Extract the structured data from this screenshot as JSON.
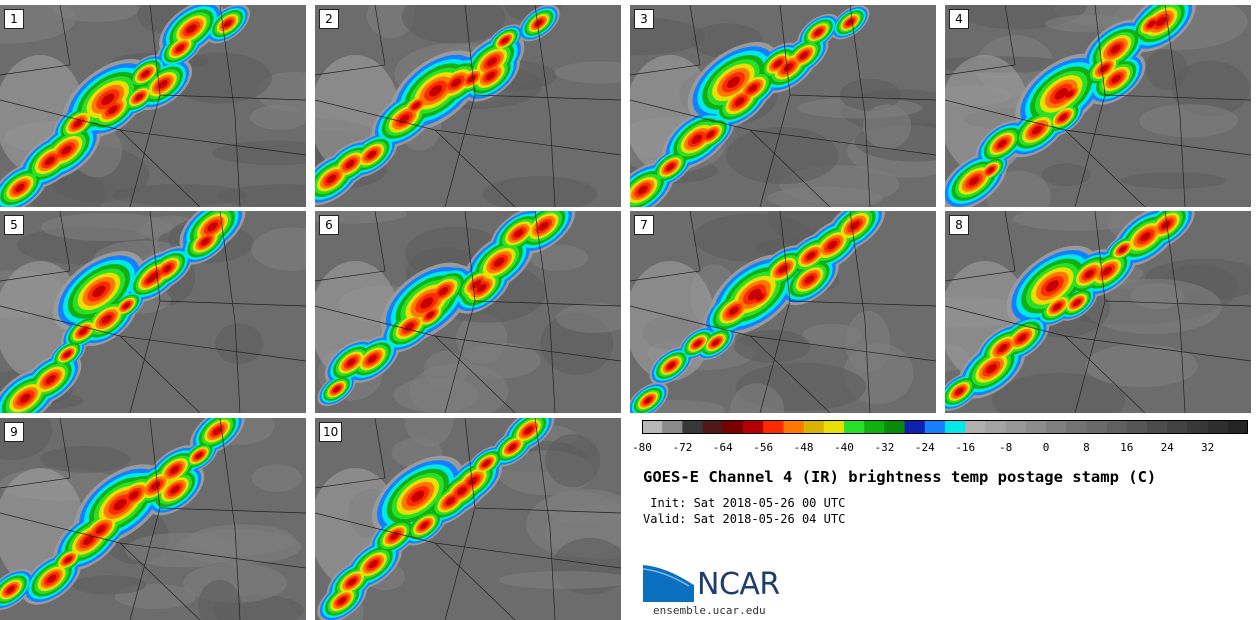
{
  "panels": [
    {
      "label": "1"
    },
    {
      "label": "2"
    },
    {
      "label": "3"
    },
    {
      "label": "4"
    },
    {
      "label": "5"
    },
    {
      "label": "6"
    },
    {
      "label": "7"
    },
    {
      "label": "8"
    },
    {
      "label": "9"
    },
    {
      "label": "10"
    }
  ],
  "colorbar": {
    "colors": [
      "#b8b8b8",
      "#8a8a8a",
      "#383838",
      "#501818",
      "#7a0000",
      "#b40000",
      "#ff2a00",
      "#ff7800",
      "#d8b400",
      "#e8e000",
      "#28e028",
      "#10b010",
      "#088c08",
      "#1020b0",
      "#1480ff",
      "#00e8e8",
      "#b0b0b0",
      "#a4a4a4",
      "#989898",
      "#8c8c8c",
      "#808080",
      "#747474",
      "#6a6a6a",
      "#606060",
      "#565656",
      "#4c4c4c",
      "#424242",
      "#383838",
      "#2e2e2e",
      "#242424"
    ],
    "tick_values": [
      "-80",
      "-72",
      "-64",
      "-56",
      "-48",
      "-40",
      "-32",
      "-24",
      "-16",
      "-8",
      "0",
      "8",
      "16",
      "24",
      "32"
    ]
  },
  "title": "GOES-E Channel 4 (IR) brightness temp postage stamp (C)",
  "init_text": " Init: Sat 2018-05-26 00 UTC",
  "valid_text": "Valid: Sat 2018-05-26 04 UTC",
  "logo_text": "NCAR",
  "url": "ensemble.ucar.edu"
}
